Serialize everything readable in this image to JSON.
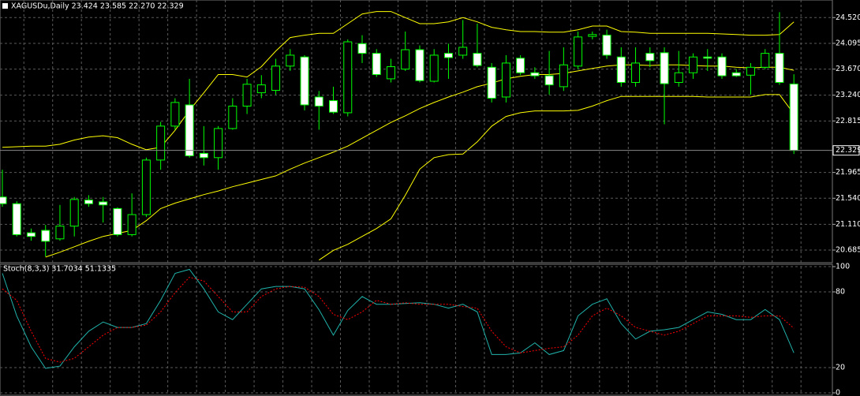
{
  "chart_data": [
    {
      "type": "candlestick",
      "title": "XAGUSDu,Daily  23.424 23.585 22.270 22.329",
      "categories": [
        null,
        null,
        null,
        null,
        null,
        null,
        null,
        null,
        null,
        null,
        null,
        null,
        null,
        null,
        null,
        null,
        null,
        null,
        null,
        null,
        null,
        null,
        null,
        null,
        null,
        null,
        null,
        null,
        null,
        null,
        null,
        null,
        null,
        null,
        null,
        null,
        null,
        null,
        null,
        null,
        null,
        null,
        null,
        null,
        null,
        null,
        null,
        null,
        null,
        null,
        null,
        null,
        null,
        null,
        null,
        null
      ],
      "open": [
        21.56,
        21.45,
        20.97,
        21.01,
        20.87,
        21.08,
        21.51,
        21.48,
        21.37,
        20.94,
        21.27,
        22.17,
        22.73,
        23.08,
        22.28,
        22.21,
        22.69,
        23.06,
        23.28,
        23.32,
        23.72,
        23.87,
        23.21,
        23.15,
        22.95,
        24.09,
        23.93,
        23.51,
        23.67,
        23.99,
        23.47,
        23.93,
        23.9,
        23.93,
        23.7,
        23.21,
        23.85,
        23.61,
        23.56,
        23.38,
        23.72,
        24.21,
        24.23,
        23.87,
        23.45,
        23.93,
        23.94,
        23.45,
        23.61,
        23.87,
        23.87,
        23.61,
        23.57,
        23.7,
        23.93,
        23.424
      ],
      "high": [
        22.01,
        21.49,
        21.04,
        21.1,
        21.43,
        21.56,
        21.59,
        21.56,
        21.39,
        21.62,
        22.21,
        22.8,
        23.19,
        23.51,
        22.73,
        22.73,
        23.19,
        23.51,
        23.57,
        23.84,
        24.0,
        23.9,
        23.31,
        23.38,
        24.16,
        24.23,
        24.0,
        23.84,
        24.29,
        24.06,
        24.0,
        24.09,
        24.48,
        24.42,
        23.77,
        23.9,
        23.9,
        23.7,
        23.97,
        24.03,
        24.29,
        24.29,
        24.32,
        24.03,
        24.03,
        24.03,
        24.03,
        23.97,
        23.93,
        24.0,
        23.93,
        23.67,
        23.77,
        24.0,
        24.61,
        23.585
      ],
      "low": [
        21.4,
        20.91,
        20.84,
        20.58,
        20.84,
        20.91,
        21.4,
        21.14,
        20.91,
        20.91,
        21.23,
        22.01,
        22.67,
        22.21,
        22.08,
        22.01,
        22.67,
        22.93,
        23.19,
        23.25,
        23.64,
        22.99,
        22.67,
        22.93,
        22.89,
        23.77,
        23.54,
        23.45,
        23.64,
        23.45,
        23.45,
        23.51,
        23.84,
        23.7,
        23.12,
        23.12,
        23.57,
        23.51,
        23.25,
        23.31,
        23.67,
        24.16,
        23.84,
        23.38,
        23.38,
        23.7,
        22.76,
        23.38,
        23.51,
        23.64,
        23.51,
        23.54,
        23.25,
        23.67,
        23.41,
        22.27
      ],
      "close": [
        21.45,
        20.94,
        20.91,
        20.83,
        21.08,
        21.52,
        21.45,
        21.43,
        20.94,
        21.27,
        22.17,
        22.73,
        23.12,
        22.24,
        22.21,
        22.69,
        23.06,
        23.42,
        23.41,
        23.72,
        23.9,
        23.08,
        23.06,
        22.96,
        24.12,
        23.93,
        23.58,
        23.71,
        23.99,
        23.48,
        23.9,
        23.86,
        24.03,
        23.73,
        23.19,
        23.77,
        23.61,
        23.56,
        23.41,
        23.74,
        24.2,
        24.24,
        23.9,
        23.45,
        23.77,
        23.81,
        23.43,
        23.61,
        23.87,
        23.85,
        23.56,
        23.56,
        23.7,
        23.93,
        23.45,
        22.329
      ],
      "bands": {
        "color": "#ffff00",
        "upper": [
          22.38,
          22.39,
          22.4,
          22.4,
          22.43,
          22.5,
          22.55,
          22.57,
          22.54,
          22.43,
          22.34,
          22.38,
          22.66,
          22.99,
          23.28,
          23.58,
          23.58,
          23.54,
          23.71,
          23.97,
          24.19,
          24.23,
          24.26,
          24.26,
          24.42,
          24.58,
          24.62,
          24.62,
          24.52,
          24.42,
          24.42,
          24.45,
          24.52,
          24.45,
          24.36,
          24.32,
          24.29,
          24.29,
          24.28,
          24.28,
          24.32,
          24.38,
          24.38,
          24.29,
          24.28,
          24.26,
          24.26,
          24.26,
          24.26,
          24.26,
          24.25,
          24.24,
          24.23,
          24.23,
          24.24,
          24.45
        ],
        "middle": [
          null,
          null,
          null,
          20.57,
          20.65,
          20.74,
          20.83,
          20.91,
          20.96,
          21.01,
          21.17,
          21.37,
          21.46,
          21.53,
          21.6,
          21.66,
          21.73,
          21.79,
          21.85,
          21.91,
          22.02,
          22.12,
          22.21,
          22.3,
          22.4,
          22.53,
          22.66,
          22.79,
          22.9,
          23.02,
          23.12,
          23.21,
          23.29,
          23.38,
          23.44,
          23.51,
          23.55,
          23.58,
          23.58,
          23.6,
          23.64,
          23.68,
          23.72,
          23.74,
          23.74,
          23.73,
          23.74,
          23.74,
          23.73,
          23.72,
          23.72,
          23.7,
          23.69,
          23.7,
          23.7,
          23.65
        ],
        "lower": [
          null,
          null,
          null,
          null,
          null,
          null,
          null,
          null,
          null,
          null,
          null,
          null,
          null,
          null,
          null,
          null,
          null,
          null,
          null,
          null,
          null,
          null,
          20.52,
          20.68,
          20.78,
          20.91,
          21.04,
          21.2,
          21.59,
          22.02,
          22.21,
          22.26,
          22.27,
          22.47,
          22.73,
          22.89,
          22.95,
          22.98,
          22.98,
          22.98,
          22.99,
          23.06,
          23.15,
          23.22,
          23.22,
          23.22,
          23.22,
          23.22,
          23.22,
          23.21,
          23.21,
          23.21,
          23.21,
          23.25,
          23.25,
          22.93
        ]
      },
      "up_color": "#000000",
      "down_color": "#ffffff",
      "outline_color": "#00ff00",
      "ylim": [
        20.49,
        24.81
      ],
      "yticks": [
        {
          "value": 20.685,
          "label": "20.685"
        },
        {
          "value": 21.11,
          "label": "21.110"
        },
        {
          "value": 21.54,
          "label": "21.540"
        },
        {
          "value": 21.965,
          "label": "21.965"
        },
        {
          "value": 22.815,
          "label": "22.815"
        },
        {
          "value": 23.24,
          "label": "23.240"
        },
        {
          "value": 23.67,
          "label": "23.670"
        },
        {
          "value": 24.095,
          "label": "24.095"
        },
        {
          "value": 24.52,
          "label": "24.520"
        }
      ],
      "grid": true
    },
    {
      "type": "line",
      "title": "Stoch(8,3,3) 31.7034 51.1335",
      "categories": [
        null,
        null,
        null,
        null,
        null,
        null,
        null,
        null,
        null,
        null,
        null,
        null,
        null,
        null,
        null,
        null,
        null,
        null,
        null,
        null,
        null,
        null,
        null,
        null,
        null,
        null,
        null,
        null,
        null,
        null,
        null,
        null,
        null,
        null,
        null,
        null,
        null,
        null,
        null,
        null,
        null,
        null,
        null,
        null,
        null,
        null,
        null,
        null,
        null,
        null,
        null,
        null,
        null,
        null,
        null,
        null
      ],
      "series": [
        {
          "color": "#20b2aa",
          "dash": false,
          "values": [
            94.7,
            61.0,
            36.5,
            19.4,
            21.2,
            36.5,
            48.8,
            56.1,
            51.8,
            51.8,
            54.9,
            73.3,
            94.7,
            97.8,
            82.4,
            64.1,
            58.0,
            70.2,
            82.4,
            84.3,
            84.3,
            82.4,
            65.9,
            45.7,
            65.3,
            76.3,
            70.2,
            70.2,
            70.8,
            71.4,
            70.2,
            67.1,
            70.2,
            64.1,
            30.4,
            30.4,
            31.6,
            39.6,
            30.4,
            33.5,
            61.0,
            70.2,
            74.5,
            54.9,
            42.6,
            48.8,
            50.0,
            51.8,
            58.0,
            64.1,
            62.2,
            58.0,
            58.0,
            66.0,
            58.0,
            31.7
          ]
        },
        {
          "color": "#ff0000",
          "dash": true,
          "values": [
            82.4,
            73.3,
            48.8,
            27.3,
            24.3,
            27.3,
            36.5,
            45.7,
            51.8,
            51.8,
            53.7,
            64.1,
            79.4,
            91.6,
            88.6,
            76.3,
            64.1,
            64.1,
            76.3,
            82.4,
            84.3,
            83.7,
            76.3,
            62.2,
            58.0,
            64.1,
            73.3,
            70.2,
            71.4,
            70.2,
            70.2,
            70.2,
            68.4,
            67.1,
            48.8,
            36.5,
            31.6,
            33.5,
            35.3,
            36.5,
            45.7,
            61.0,
            67.1,
            61.0,
            51.8,
            48.8,
            45.7,
            48.8,
            54.9,
            61.0,
            61.0,
            61.0,
            59.8,
            61.0,
            61.0,
            51.1
          ]
        }
      ],
      "ylim": [
        0,
        100
      ],
      "yticks": [
        0,
        20,
        80,
        100
      ],
      "grid": true
    }
  ]
}
